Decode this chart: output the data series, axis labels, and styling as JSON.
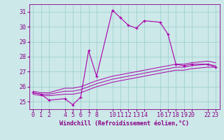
{
  "title": "",
  "xlabel": "Windchill (Refroidissement éolien,°C)",
  "background_color": "#cce8e8",
  "line_color": "#aa00aa",
  "grid_color": "#99cccc",
  "text_color": "#880088",
  "xlim": [
    -0.5,
    23.5
  ],
  "ylim": [
    24.5,
    31.5
  ],
  "yticks": [
    25,
    26,
    27,
    28,
    29,
    30,
    31
  ],
  "xticks": [
    0,
    1,
    2,
    4,
    5,
    6,
    7,
    8,
    10,
    11,
    12,
    13,
    14,
    16,
    17,
    18,
    19,
    20,
    22,
    23
  ],
  "xtick_labels": [
    "0",
    "1",
    "2",
    "4",
    "5",
    "6",
    "7",
    "8",
    "10",
    "11",
    "12",
    "13",
    "14",
    "16",
    "17",
    "18",
    "19",
    "20",
    "22",
    "23"
  ],
  "hours": [
    0,
    1,
    2,
    4,
    5,
    6,
    7,
    8,
    10,
    11,
    12,
    13,
    14,
    16,
    17,
    18,
    19,
    20,
    22,
    23
  ],
  "windchill_main": [
    25.6,
    25.5,
    25.1,
    25.2,
    24.8,
    25.3,
    28.4,
    26.7,
    31.1,
    30.6,
    30.1,
    29.9,
    30.4,
    30.3,
    29.5,
    27.5,
    27.4,
    27.5,
    27.5,
    27.3
  ],
  "line2": [
    25.5,
    25.4,
    25.4,
    25.5,
    25.5,
    25.6,
    25.8,
    26.0,
    26.3,
    26.4,
    26.5,
    26.6,
    26.7,
    26.9,
    27.0,
    27.1,
    27.1,
    27.2,
    27.3,
    27.3
  ],
  "line3": [
    25.6,
    25.5,
    25.5,
    25.7,
    25.7,
    25.8,
    26.0,
    26.2,
    26.5,
    26.6,
    26.7,
    26.8,
    26.9,
    27.1,
    27.2,
    27.3,
    27.3,
    27.4,
    27.5,
    27.4
  ],
  "line4": [
    25.7,
    25.6,
    25.6,
    25.9,
    25.9,
    26.0,
    26.2,
    26.4,
    26.7,
    26.8,
    26.9,
    27.0,
    27.1,
    27.3,
    27.4,
    27.5,
    27.5,
    27.6,
    27.7,
    27.6
  ],
  "xlabel_fontsize": 6.0,
  "tick_fontsize": 6.0
}
